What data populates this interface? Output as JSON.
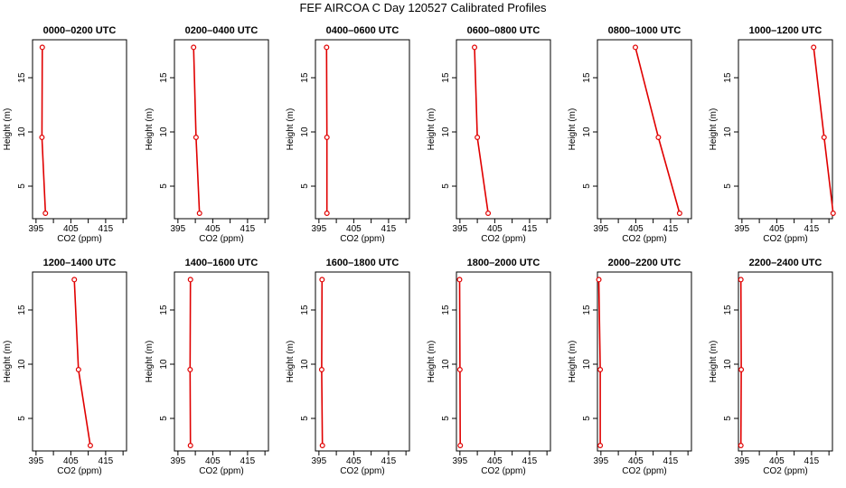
{
  "title": "FEF AIRCOA C  Day 120527  Calibrated Profiles",
  "colors": {
    "series": "#e00000",
    "axis": "#000000"
  },
  "chart_data": [
    {
      "type": "line",
      "title": "0000–0200 UTC",
      "xlabel": "CO2 (ppm)",
      "ylabel": "Height (m)",
      "xlim": [
        394,
        421
      ],
      "ylim": [
        2,
        18.5
      ],
      "xticks": [
        395,
        405,
        415
      ],
      "yticks": [
        5,
        10,
        15
      ],
      "grid": false,
      "series": [
        {
          "x": [
            396.8,
            396.7,
            397.7
          ],
          "y": [
            17.8,
            9.5,
            2.5
          ]
        }
      ]
    },
    {
      "type": "line",
      "title": "0200–0400 UTC",
      "xlabel": "CO2 (ppm)",
      "ylabel": "Height (m)",
      "xlim": [
        394,
        421
      ],
      "ylim": [
        2,
        18.5
      ],
      "xticks": [
        395,
        405,
        415
      ],
      "yticks": [
        5,
        10,
        15
      ],
      "grid": false,
      "series": [
        {
          "x": [
            399.5,
            400.2,
            401.2
          ],
          "y": [
            17.8,
            9.5,
            2.5
          ]
        }
      ]
    },
    {
      "type": "line",
      "title": "0400–0600 UTC",
      "xlabel": "CO2 (ppm)",
      "ylabel": "Height (m)",
      "xlim": [
        394,
        421
      ],
      "ylim": [
        2,
        18.5
      ],
      "xticks": [
        395,
        405,
        415
      ],
      "yticks": [
        5,
        10,
        15
      ],
      "grid": false,
      "series": [
        {
          "x": [
            397.2,
            397.3,
            397.3
          ],
          "y": [
            17.8,
            9.5,
            2.5
          ]
        }
      ]
    },
    {
      "type": "line",
      "title": "0600–0800 UTC",
      "xlabel": "CO2 (ppm)",
      "ylabel": "Height (m)",
      "xlim": [
        394,
        421
      ],
      "ylim": [
        2,
        18.5
      ],
      "xticks": [
        395,
        405,
        415
      ],
      "yticks": [
        5,
        10,
        15
      ],
      "grid": false,
      "series": [
        {
          "x": [
            399.2,
            400.0,
            403.1
          ],
          "y": [
            17.8,
            9.5,
            2.5
          ]
        }
      ]
    },
    {
      "type": "line",
      "title": "0800–1000 UTC",
      "xlabel": "CO2 (ppm)",
      "ylabel": "Height (m)",
      "xlim": [
        394,
        421
      ],
      "ylim": [
        2,
        18.5
      ],
      "xticks": [
        395,
        405,
        415
      ],
      "yticks": [
        5,
        10,
        15
      ],
      "grid": false,
      "series": [
        {
          "x": [
            404.9,
            411.5,
            417.6
          ],
          "y": [
            17.8,
            9.5,
            2.5
          ]
        }
      ]
    },
    {
      "type": "line",
      "title": "1000–1200 UTC",
      "xlabel": "CO2 (ppm)",
      "ylabel": "Height (m)",
      "xlim": [
        394,
        421
      ],
      "ylim": [
        2,
        18.5
      ],
      "xticks": [
        395,
        405,
        415
      ],
      "yticks": [
        5,
        10,
        15
      ],
      "grid": false,
      "series": [
        {
          "x": [
            415.6,
            418.6,
            421.2
          ],
          "y": [
            17.8,
            9.5,
            2.5
          ]
        }
      ]
    },
    {
      "type": "line",
      "title": "1200–1400 UTC",
      "xlabel": "CO2 (ppm)",
      "ylabel": "Height (m)",
      "xlim": [
        394,
        421
      ],
      "ylim": [
        2,
        18.5
      ],
      "xticks": [
        395,
        405,
        415
      ],
      "yticks": [
        5,
        10,
        15
      ],
      "grid": false,
      "series": [
        {
          "x": [
            406.0,
            407.2,
            410.6
          ],
          "y": [
            17.8,
            9.5,
            2.5
          ]
        }
      ]
    },
    {
      "type": "line",
      "title": "1400–1600 UTC",
      "xlabel": "CO2 (ppm)",
      "ylabel": "Height (m)",
      "xlim": [
        394,
        421
      ],
      "ylim": [
        2,
        18.5
      ],
      "xticks": [
        395,
        405,
        415
      ],
      "yticks": [
        5,
        10,
        15
      ],
      "grid": false,
      "series": [
        {
          "x": [
            398.6,
            398.5,
            398.6
          ],
          "y": [
            17.8,
            9.5,
            2.5
          ]
        }
      ]
    },
    {
      "type": "line",
      "title": "1600–1800 UTC",
      "xlabel": "CO2 (ppm)",
      "ylabel": "Height (m)",
      "xlim": [
        394,
        421
      ],
      "ylim": [
        2,
        18.5
      ],
      "xticks": [
        395,
        405,
        415
      ],
      "yticks": [
        5,
        10,
        15
      ],
      "grid": false,
      "series": [
        {
          "x": [
            395.9,
            395.8,
            396.0
          ],
          "y": [
            17.8,
            9.5,
            2.5
          ]
        }
      ]
    },
    {
      "type": "line",
      "title": "1800–2000 UTC",
      "xlabel": "CO2 (ppm)",
      "ylabel": "Height (m)",
      "xlim": [
        394,
        421
      ],
      "ylim": [
        2,
        18.5
      ],
      "xticks": [
        395,
        405,
        415
      ],
      "yticks": [
        5,
        10,
        15
      ],
      "grid": false,
      "series": [
        {
          "x": [
            394.9,
            395.0,
            395.1
          ],
          "y": [
            17.8,
            9.5,
            2.5
          ]
        }
      ]
    },
    {
      "type": "line",
      "title": "2000–2200 UTC",
      "xlabel": "CO2 (ppm)",
      "ylabel": "Height (m)",
      "xlim": [
        394,
        421
      ],
      "ylim": [
        2,
        18.5
      ],
      "xticks": [
        395,
        405,
        415
      ],
      "yticks": [
        5,
        10,
        15
      ],
      "grid": false,
      "series": [
        {
          "x": [
            394.4,
            394.8,
            394.8
          ],
          "y": [
            17.8,
            9.5,
            2.5
          ]
        }
      ]
    },
    {
      "type": "line",
      "title": "2200–2400 UTC",
      "xlabel": "CO2 (ppm)",
      "ylabel": "Height (m)",
      "xlim": [
        394,
        421
      ],
      "ylim": [
        2,
        18.5
      ],
      "xticks": [
        395,
        405,
        415
      ],
      "yticks": [
        5,
        10,
        15
      ],
      "grid": false,
      "series": [
        {
          "x": [
            394.7,
            394.8,
            394.7
          ],
          "y": [
            17.8,
            9.5,
            2.5
          ]
        }
      ]
    }
  ]
}
